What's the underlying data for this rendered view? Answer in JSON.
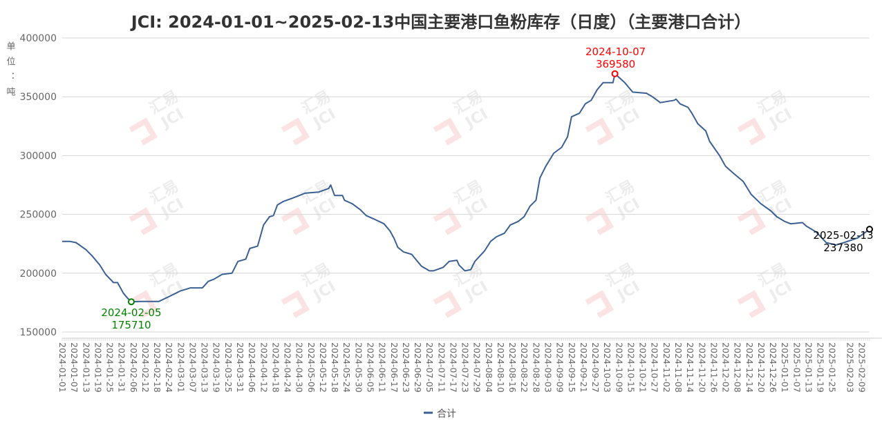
{
  "chart_data": {
    "type": "line",
    "title": "JCI: 2024-01-01~2025-02-13中国主要港口鱼粉库存（日度）（主要港口合计）",
    "ylabel": "单位：吨",
    "xlabel": "",
    "ylim": [
      150000,
      400000
    ],
    "xlim": [
      "2024-01-01",
      "2025-02-13"
    ],
    "yticks": [
      "150000",
      "200000",
      "250000",
      "300000",
      "350000",
      "400000"
    ],
    "grid": true,
    "legend_position": "bottom",
    "watermark": "汇易 JCI",
    "xticks": [
      "2024-01-01",
      "2024-01-07",
      "2024-01-13",
      "2024-01-19",
      "2024-01-25",
      "2024-01-31",
      "2024-02-06",
      "2024-02-12",
      "2024-02-18",
      "2024-02-24",
      "2024-03-01",
      "2024-03-07",
      "2024-03-13",
      "2024-03-19",
      "2024-03-25",
      "2024-03-31",
      "2024-04-06",
      "2024-04-12",
      "2024-04-18",
      "2024-04-24",
      "2024-04-30",
      "2024-05-06",
      "2024-05-12",
      "2024-05-18",
      "2024-05-24",
      "2024-05-30",
      "2024-06-05",
      "2024-06-11",
      "2024-06-17",
      "2024-06-23",
      "2024-06-29",
      "2024-07-05",
      "2024-07-11",
      "2024-07-17",
      "2024-07-23",
      "2024-07-29",
      "2024-08-04",
      "2024-08-10",
      "2024-08-16",
      "2024-08-22",
      "2024-08-28",
      "2024-09-03",
      "2024-09-09",
      "2024-09-15",
      "2024-09-21",
      "2024-09-27",
      "2024-10-03",
      "2024-10-09",
      "2024-10-15",
      "2024-10-21",
      "2024-10-27",
      "2024-11-02",
      "2024-11-08",
      "2024-11-14",
      "2024-11-20",
      "2024-11-26",
      "2024-12-02",
      "2024-12-08",
      "2024-12-14",
      "2024-12-20",
      "2024-12-26",
      "2025-01-01",
      "2025-01-07",
      "2025-01-13",
      "2025-01-19",
      "2025-01-25",
      "2025-02-03",
      "2025-02-09"
    ],
    "series": [
      {
        "name": "合计",
        "color": "#3a5f92",
        "points": [
          [
            "2024-01-01",
            227000
          ],
          [
            "2024-01-05",
            227000
          ],
          [
            "2024-01-08",
            226000
          ],
          [
            "2024-01-13",
            220000
          ],
          [
            "2024-01-16",
            215000
          ],
          [
            "2024-01-20",
            207000
          ],
          [
            "2024-01-23",
            199000
          ],
          [
            "2024-01-27",
            192000
          ],
          [
            "2024-01-29",
            192000
          ],
          [
            "2024-02-01",
            183000
          ],
          [
            "2024-02-03",
            179000
          ],
          [
            "2024-02-05",
            175710
          ],
          [
            "2024-02-10",
            176000
          ],
          [
            "2024-02-19",
            176000
          ],
          [
            "2024-02-24",
            180000
          ],
          [
            "2024-03-01",
            185000
          ],
          [
            "2024-03-06",
            187500
          ],
          [
            "2024-03-12",
            187500
          ],
          [
            "2024-03-15",
            193000
          ],
          [
            "2024-03-18",
            195000
          ],
          [
            "2024-03-22",
            199000
          ],
          [
            "2024-03-27",
            200000
          ],
          [
            "2024-03-30",
            210000
          ],
          [
            "2024-04-03",
            212000
          ],
          [
            "2024-04-05",
            221000
          ],
          [
            "2024-04-09",
            223000
          ],
          [
            "2024-04-12",
            241000
          ],
          [
            "2024-04-15",
            248000
          ],
          [
            "2024-04-17",
            249000
          ],
          [
            "2024-04-19",
            258000
          ],
          [
            "2024-04-22",
            261000
          ],
          [
            "2024-04-27",
            264000
          ],
          [
            "2024-05-03",
            268000
          ],
          [
            "2024-05-10",
            269000
          ],
          [
            "2024-05-15",
            272000
          ],
          [
            "2024-05-16",
            275000
          ],
          [
            "2024-05-18",
            266000
          ],
          [
            "2024-05-22",
            266000
          ],
          [
            "2024-05-23",
            262000
          ],
          [
            "2024-05-27",
            259000
          ],
          [
            "2024-05-31",
            254000
          ],
          [
            "2024-06-03",
            249000
          ],
          [
            "2024-06-07",
            246000
          ],
          [
            "2024-06-12",
            242000
          ],
          [
            "2024-06-15",
            236000
          ],
          [
            "2024-06-17",
            230000
          ],
          [
            "2024-06-19",
            222000
          ],
          [
            "2024-06-22",
            218000
          ],
          [
            "2024-06-26",
            216000
          ],
          [
            "2024-06-28",
            212000
          ],
          [
            "2024-07-01",
            206000
          ],
          [
            "2024-07-05",
            202000
          ],
          [
            "2024-07-07",
            202000
          ],
          [
            "2024-07-12",
            205000
          ],
          [
            "2024-07-15",
            210000
          ],
          [
            "2024-07-19",
            211000
          ],
          [
            "2024-07-20",
            207000
          ],
          [
            "2024-07-23",
            202000
          ],
          [
            "2024-07-26",
            203000
          ],
          [
            "2024-07-28",
            210000
          ],
          [
            "2024-08-02",
            219000
          ],
          [
            "2024-08-05",
            227000
          ],
          [
            "2024-08-08",
            231000
          ],
          [
            "2024-08-12",
            234000
          ],
          [
            "2024-08-15",
            241000
          ],
          [
            "2024-08-19",
            244000
          ],
          [
            "2024-08-22",
            248000
          ],
          [
            "2024-08-25",
            257000
          ],
          [
            "2024-08-28",
            262000
          ],
          [
            "2024-08-30",
            281000
          ],
          [
            "2024-09-02",
            291000
          ],
          [
            "2024-09-06",
            302000
          ],
          [
            "2024-09-10",
            307000
          ],
          [
            "2024-09-13",
            316000
          ],
          [
            "2024-09-15",
            333000
          ],
          [
            "2024-09-19",
            336000
          ],
          [
            "2024-09-22",
            344000
          ],
          [
            "2024-09-25",
            347000
          ],
          [
            "2024-09-28",
            356000
          ],
          [
            "2024-10-01",
            362000
          ],
          [
            "2024-10-06",
            362000
          ],
          [
            "2024-10-07",
            369580
          ],
          [
            "2024-10-12",
            362000
          ],
          [
            "2024-10-16",
            354000
          ],
          [
            "2024-10-23",
            353000
          ],
          [
            "2024-10-26",
            350000
          ],
          [
            "2024-10-30",
            345000
          ],
          [
            "2024-11-06",
            347000
          ],
          [
            "2024-11-07",
            348000
          ],
          [
            "2024-11-09",
            344000
          ],
          [
            "2024-11-13",
            341000
          ],
          [
            "2024-11-15",
            336000
          ],
          [
            "2024-11-18",
            327000
          ],
          [
            "2024-11-22",
            321000
          ],
          [
            "2024-11-24",
            312000
          ],
          [
            "2024-11-29",
            300000
          ],
          [
            "2024-12-02",
            291000
          ],
          [
            "2024-12-06",
            285000
          ],
          [
            "2024-12-11",
            278000
          ],
          [
            "2024-12-15",
            267000
          ],
          [
            "2024-12-20",
            259000
          ],
          [
            "2024-12-25",
            253000
          ],
          [
            "2024-12-28",
            248000
          ],
          [
            "2025-01-01",
            244000
          ],
          [
            "2025-01-04",
            242000
          ],
          [
            "2025-01-10",
            243000
          ],
          [
            "2025-01-12",
            240000
          ],
          [
            "2025-01-17",
            235000
          ],
          [
            "2025-01-22",
            226000
          ],
          [
            "2025-01-27",
            224000
          ],
          [
            "2025-01-31",
            226000
          ],
          [
            "2025-02-07",
            230000
          ],
          [
            "2025-02-13",
            237380
          ]
        ]
      }
    ],
    "annotations": [
      {
        "kind": "min",
        "date": "2024-02-05",
        "value": 175710,
        "date_label": "2024-02-05",
        "value_label": "175710",
        "color": "#008000"
      },
      {
        "kind": "max",
        "date": "2024-10-07",
        "value": 369580,
        "date_label": "2024-10-07",
        "value_label": "369580",
        "color": "#ff0000"
      },
      {
        "kind": "last",
        "date": "2025-02-13",
        "value": 237380,
        "date_label": "2025-02-13",
        "value_label": "237380",
        "color": "#000000"
      }
    ]
  }
}
